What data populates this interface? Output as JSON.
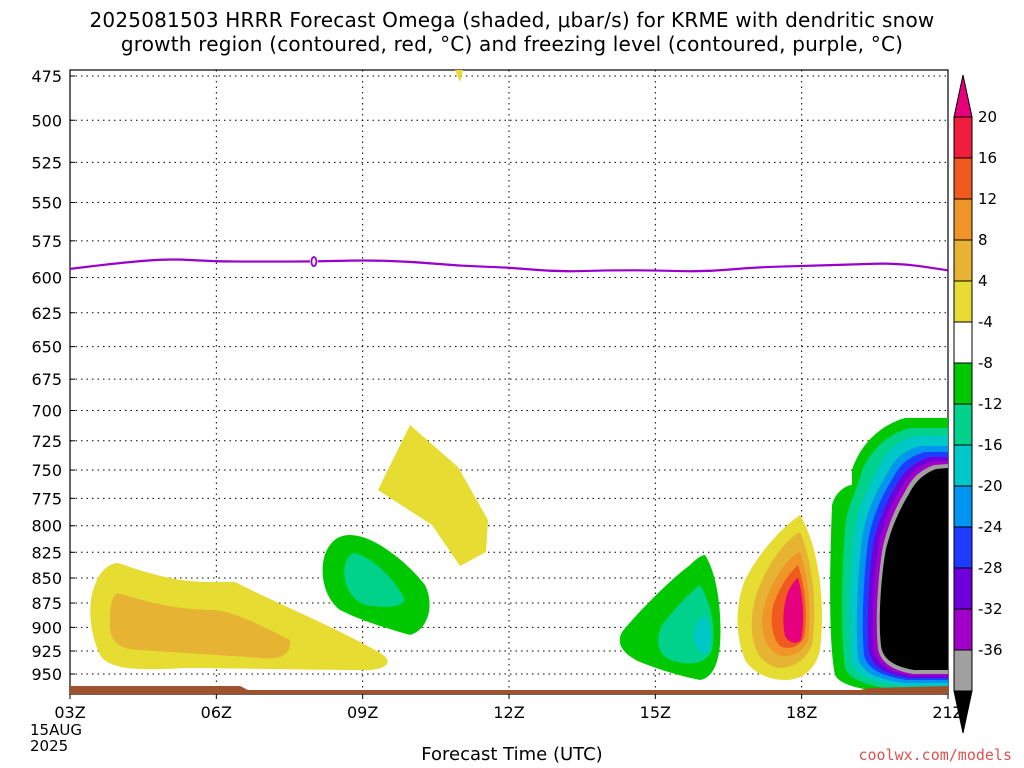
{
  "title_line1": "2025081503 HRRR Forecast Omega (shaded, μbar/s) for KRME with dendritic snow",
  "title_line2": "growth region (contoured, red, °C) and freezing level (contoured, purple, °C)",
  "xlabel": "Forecast Time (UTC)",
  "credit": "coolwx.com/models",
  "date_label": {
    "day": "15AUG",
    "year": "2025"
  },
  "chart_data": {
    "type": "heatmap",
    "title": "2025081503 HRRR Forecast Omega (shaded, μbar/s) for KRME with dendritic snow growth region (contoured, red, °C) and freezing level (contoured, purple, °C)",
    "xlabel": "Forecast Time (UTC)",
    "ylabel": "",
    "x_hours": [
      3,
      21
    ],
    "x_ticks": [
      {
        "hour": 3,
        "label": "03Z"
      },
      {
        "hour": 6,
        "label": "06Z"
      },
      {
        "hour": 9,
        "label": "09Z"
      },
      {
        "hour": 12,
        "label": "12Z"
      },
      {
        "hour": 15,
        "label": "15Z"
      },
      {
        "hour": 18,
        "label": "18Z"
      },
      {
        "hour": 21,
        "label": "21Z"
      }
    ],
    "y_ticks": [
      475,
      500,
      525,
      550,
      575,
      600,
      625,
      650,
      675,
      700,
      725,
      750,
      775,
      800,
      825,
      850,
      875,
      900,
      925,
      950
    ],
    "y_inverted": true,
    "grid": true,
    "colorbar": {
      "levels": [
        20,
        16,
        12,
        8,
        4,
        -4,
        -8,
        -12,
        -16,
        -20,
        -24,
        -28,
        -32,
        -36
      ],
      "colors": [
        "#f01e3c",
        "#f05a1e",
        "#f09628",
        "#e6b432",
        "#e6dc32",
        "#ffffff",
        "#00c800",
        "#00d28c",
        "#00c8c8",
        "#0096f0",
        "#1e3cff",
        "#6e00dc",
        "#a000c8",
        "#a0a0a0"
      ],
      "top_arrow_color": "#e6007e",
      "bottom_arrow_color": "#000000"
    },
    "freezing_level": {
      "color": "#9900cc",
      "label": "0",
      "points": [
        [
          3,
          594
        ],
        [
          4,
          590
        ],
        [
          5,
          587
        ],
        [
          6,
          589
        ],
        [
          7,
          589
        ],
        [
          8,
          589
        ],
        [
          9,
          588
        ],
        [
          10,
          589
        ],
        [
          11,
          592
        ],
        [
          12,
          593
        ],
        [
          13,
          596
        ],
        [
          14,
          595
        ],
        [
          15,
          595
        ],
        [
          16,
          596
        ],
        [
          17,
          593
        ],
        [
          18,
          592
        ],
        [
          19,
          591
        ],
        [
          20,
          590
        ],
        [
          21,
          595
        ]
      ]
    },
    "surface": {
      "color": "#a0522d"
    }
  }
}
